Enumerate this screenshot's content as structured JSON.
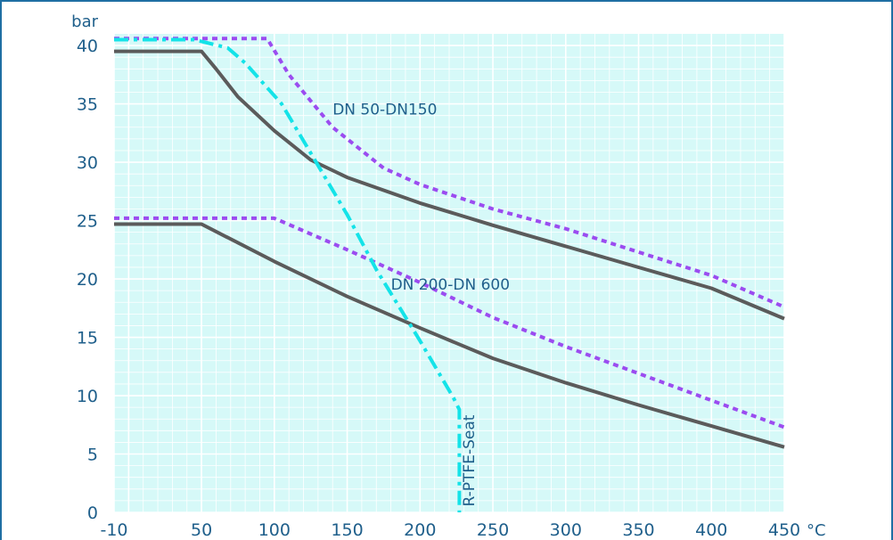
{
  "chart_data": {
    "type": "line",
    "title": "",
    "xlabel": "",
    "ylabel": "",
    "x_unit": "°C",
    "y_unit": "bar",
    "xlim": [
      -10,
      450
    ],
    "ylim": [
      0,
      41
    ],
    "x_ticks": [
      -10,
      50,
      100,
      150,
      200,
      250,
      300,
      350,
      400,
      450
    ],
    "y_ticks": [
      0,
      5,
      10,
      15,
      20,
      25,
      30,
      35,
      40
    ],
    "grid": true,
    "colors": {
      "background_plot": "#d6f9f8",
      "grid": "#ffffff",
      "text": "#1f5f8b",
      "frame": "#1f6fa3",
      "solid": "#5b5b5b",
      "dotted": "#9b4cf0",
      "seat": "#14e3e8"
    },
    "annotations": [
      {
        "text": "DN 50-DN150",
        "x": 140,
        "y": 34.1
      },
      {
        "text": "DN 200-DN 600",
        "x": 180,
        "y": 19.1
      },
      {
        "text": "R-PTFE-Seat",
        "x": 237,
        "y": 0.5,
        "rotate": true
      }
    ],
    "series": [
      {
        "style": "solid",
        "points": [
          [
            -10,
            39.5
          ],
          [
            50,
            39.5
          ],
          [
            60,
            38
          ],
          [
            75,
            35.6
          ],
          [
            100,
            32.7
          ],
          [
            125,
            30.2
          ],
          [
            150,
            28.7
          ],
          [
            200,
            26.5
          ],
          [
            250,
            24.6
          ],
          [
            300,
            22.8
          ],
          [
            350,
            21.0
          ],
          [
            400,
            19.2
          ],
          [
            450,
            16.6
          ]
        ]
      },
      {
        "style": "dotted",
        "points": [
          [
            -10,
            40.6
          ],
          [
            95,
            40.6
          ],
          [
            110,
            37.5
          ],
          [
            140,
            33
          ],
          [
            175,
            29.5
          ],
          [
            200,
            28.1
          ],
          [
            250,
            26.0
          ],
          [
            300,
            24.3
          ],
          [
            350,
            22.3
          ],
          [
            400,
            20.3
          ],
          [
            450,
            17.6
          ]
        ]
      },
      {
        "style": "solid",
        "points": [
          [
            -10,
            24.7
          ],
          [
            50,
            24.7
          ],
          [
            100,
            21.5
          ],
          [
            150,
            18.5
          ],
          [
            200,
            15.8
          ],
          [
            250,
            13.2
          ],
          [
            300,
            11.1
          ],
          [
            350,
            9.2
          ],
          [
            400,
            7.4
          ],
          [
            450,
            5.6
          ]
        ]
      },
      {
        "style": "dotted",
        "points": [
          [
            -10,
            25.2
          ],
          [
            100,
            25.2
          ],
          [
            150,
            22.5
          ],
          [
            200,
            19.7
          ],
          [
            250,
            16.7
          ],
          [
            300,
            14.2
          ],
          [
            350,
            11.9
          ],
          [
            400,
            9.6
          ],
          [
            450,
            7.3
          ]
        ]
      },
      {
        "style": "seat",
        "points": [
          [
            -10,
            40.5
          ],
          [
            45,
            40.5
          ],
          [
            68,
            39.8
          ],
          [
            80,
            38.5
          ],
          [
            105,
            35
          ],
          [
            150,
            25.5
          ],
          [
            170,
            20.8
          ],
          [
            200,
            14.7
          ],
          [
            223,
            9.8
          ],
          [
            227,
            8.8
          ],
          [
            227,
            0
          ]
        ]
      }
    ]
  }
}
